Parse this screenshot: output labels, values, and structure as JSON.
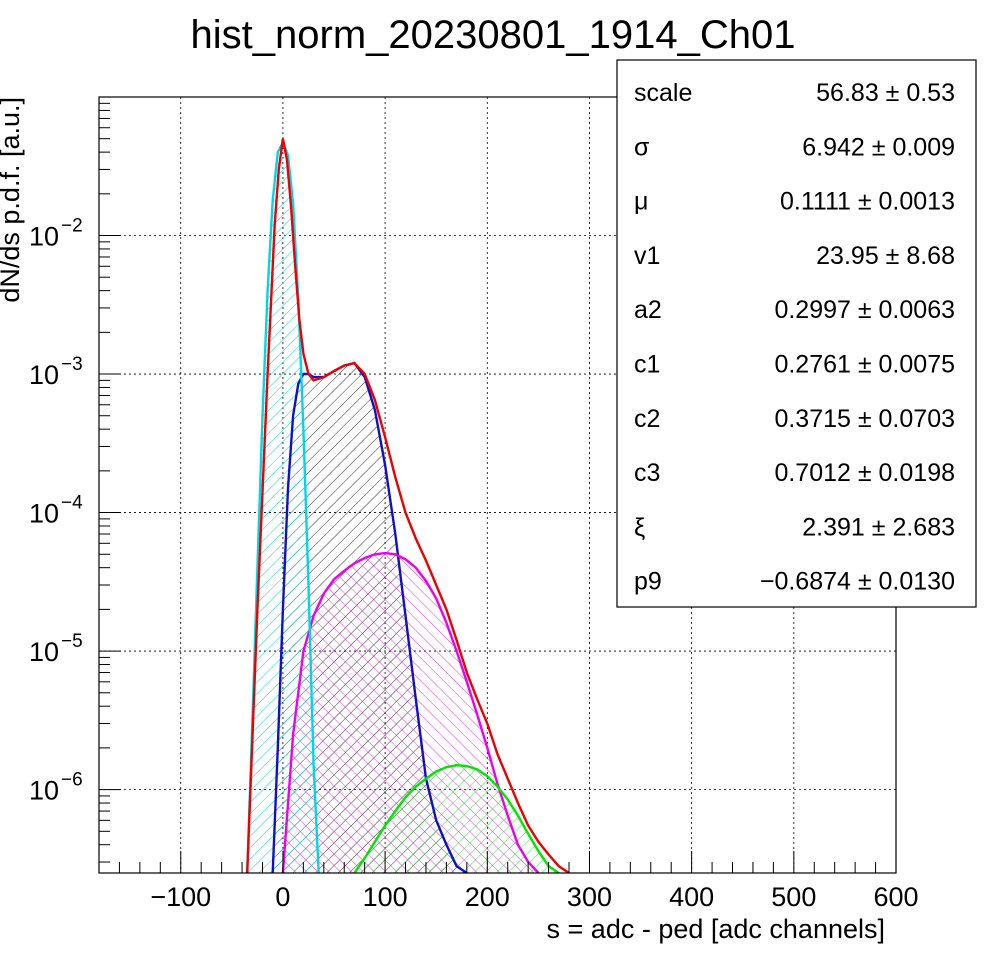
{
  "chart_data": {
    "type": "line",
    "title": "hist_norm_20230801_1914_Ch01",
    "xlabel": "s = adc - ped [adc channels]",
    "ylabel": "dN/ds p.d.f. [a.u.]",
    "xlim": [
      -180,
      600
    ],
    "ylim": [
      2.5e-07,
      0.1
    ],
    "ylog": true,
    "grid": true,
    "x_ticks": [
      -100,
      0,
      100,
      200,
      300,
      400,
      500,
      600
    ],
    "x_tick_labels": [
      "−100",
      "0",
      "100",
      "200",
      "300",
      "400",
      "500",
      "600"
    ],
    "y_ticks": [
      {
        "value": 1e-06,
        "base": "10",
        "exp": "−6"
      },
      {
        "value": 1e-05,
        "base": "10",
        "exp": "−5"
      },
      {
        "value": 0.0001,
        "base": "10",
        "exp": "−4"
      },
      {
        "value": 0.001,
        "base": "10",
        "exp": "−3"
      },
      {
        "value": 0.01,
        "base": "10",
        "exp": "−2"
      }
    ],
    "series": [
      {
        "color": "#ee0000",
        "fill": "none",
        "values_x": [
          -35,
          -25,
          -15,
          -8,
          -4,
          0,
          4,
          8,
          12,
          16,
          20,
          25,
          30,
          40,
          50,
          60,
          70,
          80,
          90,
          100,
          110,
          120,
          130,
          140,
          150,
          160,
          170,
          180,
          190,
          200,
          210,
          220,
          230,
          240,
          250,
          260,
          270,
          280
        ],
        "values_y": [
          2.5e-07,
          2e-05,
          0.001,
          0.012,
          0.03,
          0.05,
          0.035,
          0.016,
          0.006,
          0.0025,
          0.0014,
          0.001,
          0.0009,
          0.00095,
          0.00105,
          0.00115,
          0.0012,
          0.001,
          0.00065,
          0.00035,
          0.00018,
          0.0001,
          6.5e-05,
          4.5e-05,
          3e-05,
          2e-05,
          1.2e-05,
          7e-06,
          4.5e-06,
          3e-06,
          1.8e-06,
          1.2e-06,
          8e-07,
          5.5e-07,
          4.2e-07,
          3.4e-07,
          2.8e-07,
          2.5e-07
        ]
      },
      {
        "color": "#00d7e6",
        "fill": "#00d7e6",
        "values_x": [
          -35,
          -30,
          -25,
          -20,
          -15,
          -10,
          -5,
          0,
          5,
          10,
          15,
          20,
          25,
          30,
          35
        ],
        "values_y": [
          2.5e-07,
          3e-06,
          4e-05,
          0.0005,
          0.004,
          0.018,
          0.04,
          0.047,
          0.038,
          0.017,
          0.0035,
          0.0004,
          3e-05,
          1.5e-06,
          2.5e-07
        ]
      },
      {
        "color": "#1010c8",
        "fill": "#000000",
        "values_x": [
          -10,
          -5,
          0,
          5,
          10,
          15,
          20,
          25,
          30,
          40,
          50,
          60,
          70,
          80,
          90,
          100,
          110,
          120,
          130,
          140,
          150,
          160,
          170,
          180
        ],
        "values_y": [
          2.5e-07,
          2e-06,
          2e-05,
          0.00015,
          0.0005,
          0.00085,
          0.001,
          0.001,
          0.00095,
          0.00095,
          0.00105,
          0.00115,
          0.0012,
          0.00095,
          0.00055,
          0.00022,
          7e-05,
          1.8e-05,
          4.5e-06,
          1.2e-06,
          6e-07,
          4e-07,
          2.8e-07,
          2.5e-07
        ]
      },
      {
        "color": "#ee00ee",
        "fill": "#ee00ee",
        "values_x": [
          0,
          10,
          20,
          30,
          40,
          50,
          60,
          70,
          80,
          90,
          100,
          110,
          120,
          130,
          140,
          150,
          160,
          170,
          180,
          190,
          200,
          210,
          220,
          230,
          240,
          250
        ],
        "values_y": [
          2.5e-07,
          2.5e-06,
          1e-05,
          1.8e-05,
          2.6e-05,
          3.3e-05,
          3.8e-05,
          4.3e-05,
          4.7e-05,
          5e-05,
          5.1e-05,
          5e-05,
          4.6e-05,
          4e-05,
          3.2e-05,
          2.4e-05,
          1.6e-05,
          1e-05,
          6e-06,
          3.5e-06,
          2e-06,
          1.1e-06,
          6.5e-07,
          4e-07,
          3e-07,
          2.5e-07
        ]
      },
      {
        "color": "#00e600",
        "fill": "#00e600",
        "values_x": [
          70,
          80,
          90,
          100,
          110,
          120,
          130,
          140,
          150,
          160,
          170,
          180,
          190,
          200,
          210,
          220,
          230,
          240,
          250,
          260,
          270
        ],
        "values_y": [
          2.5e-07,
          3.2e-07,
          4.2e-07,
          5.5e-07,
          7e-07,
          8.8e-07,
          1.05e-06,
          1.2e-06,
          1.35e-06,
          1.45e-06,
          1.5e-06,
          1.48e-06,
          1.4e-06,
          1.25e-06,
          1.05e-06,
          8.5e-07,
          6.5e-07,
          4.8e-07,
          3.6e-07,
          2.8e-07,
          2.5e-07
        ]
      }
    ],
    "stats_box": {
      "rows": [
        {
          "name": "scale",
          "value": "56.83 ± 0.53"
        },
        {
          "name": "σ",
          "value": "6.942 ± 0.009"
        },
        {
          "name": "μ",
          "value": "0.1111 ± 0.0013"
        },
        {
          "name": "v1",
          "value": "23.95 ± 8.68"
        },
        {
          "name": "a2",
          "value": "0.2997 ± 0.0063"
        },
        {
          "name": "c1",
          "value": "0.2761 ± 0.0075"
        },
        {
          "name": "c2",
          "value": "0.3715 ± 0.0703"
        },
        {
          "name": "c3",
          "value": "0.7012 ± 0.0198"
        },
        {
          "name": "ξ",
          "value": "2.391 ± 2.683"
        },
        {
          "name": "p9",
          "value": "−0.6874 ± 0.0130"
        }
      ]
    }
  }
}
